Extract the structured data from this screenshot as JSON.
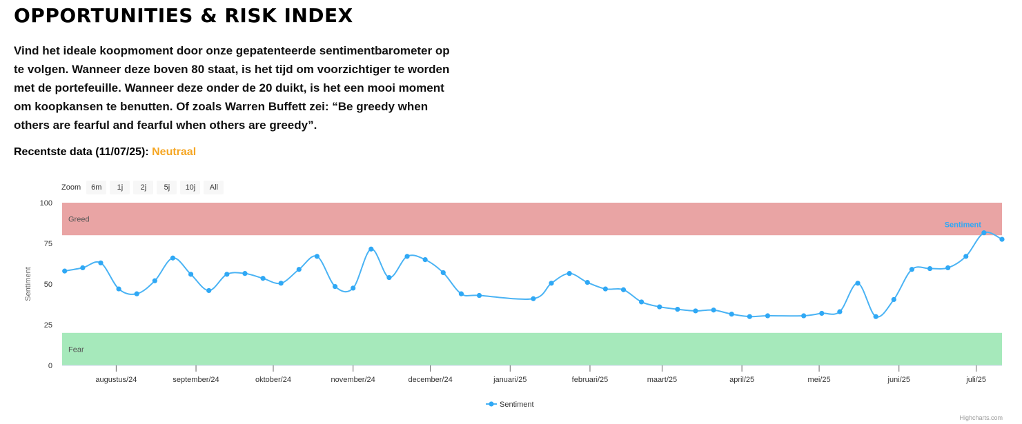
{
  "header": {
    "title": "OPPORTUNITIES & RISK INDEX",
    "intro": "Vind het ideale koopmoment door onze gepatenteerde sentimentbarometer op te volgen. Wanneer deze boven 80 staat, is het tijd om voorzichtiger te worden met de portefeuille. Wanneer deze onder de 20 duikt, is het een mooi moment om koopkansen te benutten. Of zoals Warren Buffett zei: “Be greedy when others are fearful and fearful when others are greedy”.",
    "recent_label": "Recentste data (11/07/25):",
    "recent_status": "Neutraal",
    "status_color": "#f5a623"
  },
  "zoom": {
    "label": "Zoom",
    "buttons": [
      "6m",
      "1j",
      "2j",
      "5j",
      "10j",
      "All"
    ]
  },
  "credits": "Highcharts.com",
  "colors": {
    "line": "#4ab3f4",
    "marker": "#2fa8f5",
    "greed_band": "#e9a4a4",
    "fear_band": "#a6e9bb"
  },
  "chart_data": {
    "type": "line",
    "ylabel": "Sentiment",
    "ylim": [
      0,
      100
    ],
    "yticks": [
      0,
      25,
      50,
      75,
      100
    ],
    "xlim": [
      "2024-07-11",
      "2025-07-11"
    ],
    "months": [
      {
        "label": "augustus/24",
        "date": "2024-08-01"
      },
      {
        "label": "september/24",
        "date": "2024-09-01"
      },
      {
        "label": "oktober/24",
        "date": "2024-10-01"
      },
      {
        "label": "november/24",
        "date": "2024-11-01"
      },
      {
        "label": "december/24",
        "date": "2024-12-01"
      },
      {
        "label": "januari/25",
        "date": "2025-01-01"
      },
      {
        "label": "februari/25",
        "date": "2025-02-01"
      },
      {
        "label": "maart/25",
        "date": "2025-03-01"
      },
      {
        "label": "april/25",
        "date": "2025-04-01"
      },
      {
        "label": "mei/25",
        "date": "2025-05-01"
      },
      {
        "label": "juni/25",
        "date": "2025-06-01"
      },
      {
        "label": "juli/25",
        "date": "2025-07-01"
      }
    ],
    "bands": [
      {
        "label": "Greed",
        "from": 80,
        "to": 100
      },
      {
        "label": "Fear",
        "from": 0,
        "to": 20
      }
    ],
    "series": [
      {
        "name": "Sentiment",
        "points": [
          {
            "x": "2024-07-12",
            "y": 58
          },
          {
            "x": "2024-07-19",
            "y": 60
          },
          {
            "x": "2024-07-26",
            "y": 63
          },
          {
            "x": "2024-08-02",
            "y": 47
          },
          {
            "x": "2024-08-09",
            "y": 44
          },
          {
            "x": "2024-08-16",
            "y": 52
          },
          {
            "x": "2024-08-23",
            "y": 66
          },
          {
            "x": "2024-08-30",
            "y": 56
          },
          {
            "x": "2024-09-06",
            "y": 46
          },
          {
            "x": "2024-09-13",
            "y": 56
          },
          {
            "x": "2024-09-20",
            "y": 56.5
          },
          {
            "x": "2024-09-27",
            "y": 53.5
          },
          {
            "x": "2024-10-04",
            "y": 50.5
          },
          {
            "x": "2024-10-11",
            "y": 59
          },
          {
            "x": "2024-10-18",
            "y": 67
          },
          {
            "x": "2024-10-25",
            "y": 48.5
          },
          {
            "x": "2024-11-01",
            "y": 47.5
          },
          {
            "x": "2024-11-08",
            "y": 71.5
          },
          {
            "x": "2024-11-15",
            "y": 54
          },
          {
            "x": "2024-11-22",
            "y": 67
          },
          {
            "x": "2024-11-29",
            "y": 65
          },
          {
            "x": "2024-12-06",
            "y": 57
          },
          {
            "x": "2024-12-13",
            "y": 44
          },
          {
            "x": "2024-12-20",
            "y": 43
          },
          {
            "x": "2025-01-10",
            "y": 41
          },
          {
            "x": "2025-01-17",
            "y": 50.5
          },
          {
            "x": "2025-01-24",
            "y": 56.5
          },
          {
            "x": "2025-01-31",
            "y": 51
          },
          {
            "x": "2025-02-07",
            "y": 47
          },
          {
            "x": "2025-02-14",
            "y": 46.5
          },
          {
            "x": "2025-02-21",
            "y": 39
          },
          {
            "x": "2025-02-28",
            "y": 36
          },
          {
            "x": "2025-03-07",
            "y": 34.5
          },
          {
            "x": "2025-03-14",
            "y": 33.5
          },
          {
            "x": "2025-03-21",
            "y": 34
          },
          {
            "x": "2025-03-28",
            "y": 31.5
          },
          {
            "x": "2025-04-04",
            "y": 30
          },
          {
            "x": "2025-04-11",
            "y": 30.5
          },
          {
            "x": "2025-04-25",
            "y": 30.5
          },
          {
            "x": "2025-05-02",
            "y": 32
          },
          {
            "x": "2025-05-09",
            "y": 33
          },
          {
            "x": "2025-05-16",
            "y": 50.5
          },
          {
            "x": "2025-05-23",
            "y": 30
          },
          {
            "x": "2025-05-30",
            "y": 40.5
          },
          {
            "x": "2025-06-06",
            "y": 59
          },
          {
            "x": "2025-06-13",
            "y": 59.5
          },
          {
            "x": "2025-06-20",
            "y": 60
          },
          {
            "x": "2025-06-27",
            "y": 67
          },
          {
            "x": "2025-07-04",
            "y": 81.5
          },
          {
            "x": "2025-07-11",
            "y": 77.5
          }
        ]
      }
    ],
    "series_label": "Sentiment",
    "legend": {
      "position": "bottom-center",
      "entries": [
        "Sentiment"
      ]
    },
    "grid": false
  }
}
